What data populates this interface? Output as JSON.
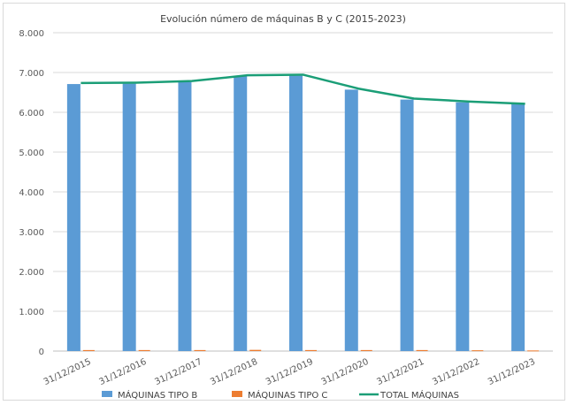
{
  "chart_data": {
    "type": "bar",
    "title": "Evolución número de máquinas B y C (2015-2023)",
    "categories": [
      "31/12/2015",
      "31/12/2016",
      "31/12/2017",
      "31/12/2018",
      "31/12/2019",
      "31/12/2020",
      "31/12/2021",
      "31/12/2022",
      "31/12/2023"
    ],
    "series": [
      {
        "name": "MÁQUINAS TIPO B",
        "kind": "bar",
        "color": "#5b9bd5",
        "values": [
          6710,
          6720,
          6760,
          6900,
          6920,
          6570,
          6320,
          6250,
          6200
        ]
      },
      {
        "name": "MÁQUINAS TIPO C",
        "kind": "bar",
        "color": "#ed7d31",
        "values": [
          25,
          25,
          25,
          30,
          25,
          25,
          25,
          20,
          15
        ]
      },
      {
        "name": "TOTAL MÁQUINAS",
        "kind": "line",
        "color": "#1b9e77",
        "values": [
          6735,
          6745,
          6785,
          6930,
          6945,
          6595,
          6345,
          6270,
          6215
        ]
      }
    ],
    "y_ticks": [
      "0",
      "1.000",
      "2.000",
      "3.000",
      "4.000",
      "5.000",
      "6.000",
      "7.000",
      "8.000"
    ],
    "ylim": [
      0,
      8000
    ],
    "grid": true,
    "legend_position": "bottom"
  }
}
